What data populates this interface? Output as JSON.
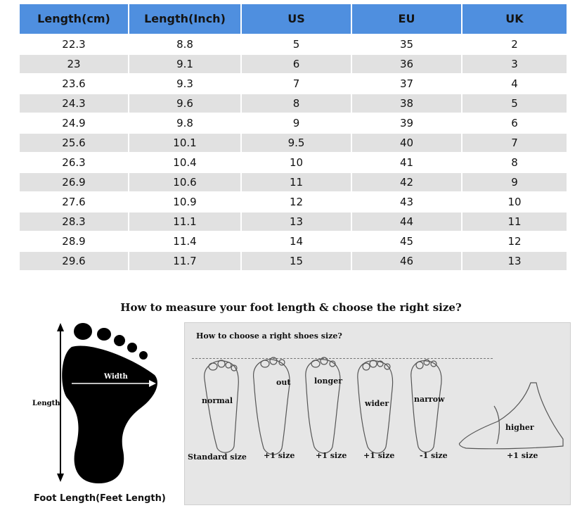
{
  "size_table": {
    "headers": [
      "Length(cm)",
      "Length(Inch)",
      "US",
      "EU",
      "UK"
    ],
    "rows": [
      [
        "22.3",
        "8.8",
        "5",
        "35",
        "2"
      ],
      [
        "23",
        "9.1",
        "6",
        "36",
        "3"
      ],
      [
        "23.6",
        "9.3",
        "7",
        "37",
        "4"
      ],
      [
        "24.3",
        "9.6",
        "8",
        "38",
        "5"
      ],
      [
        "24.9",
        "9.8",
        "9",
        "39",
        "6"
      ],
      [
        "25.6",
        "10.1",
        "9.5",
        "40",
        "7"
      ],
      [
        "26.3",
        "10.4",
        "10",
        "41",
        "8"
      ],
      [
        "26.9",
        "10.6",
        "11",
        "42",
        "9"
      ],
      [
        "27.6",
        "10.9",
        "12",
        "43",
        "10"
      ],
      [
        "28.3",
        "11.1",
        "13",
        "44",
        "11"
      ],
      [
        "28.9",
        "11.4",
        "14",
        "45",
        "12"
      ],
      [
        "29.6",
        "11.7",
        "15",
        "46",
        "13"
      ]
    ]
  },
  "guide": {
    "title": "How to measure your foot length & choose the right size?",
    "foot_diagram": {
      "width_label": "Width",
      "length_label": "Length",
      "caption": "Foot Length(Feet Length)"
    },
    "shoes_panel": {
      "title": "How to choose a right shoes size?",
      "fits": [
        {
          "note": "normal",
          "size": "Standard size"
        },
        {
          "note": "out",
          "size": "+1 size"
        },
        {
          "note": "longer",
          "size": "+1 size"
        },
        {
          "note": "wider",
          "size": "+1 size"
        },
        {
          "note": "narrow",
          "size": "-1 size"
        },
        {
          "note": "higher",
          "size": "+1 size"
        }
      ]
    }
  },
  "colors": {
    "header_blue": "#4f8fdf",
    "row_gray": "#e1e1e1",
    "panel_gray": "#e6e6e6"
  }
}
